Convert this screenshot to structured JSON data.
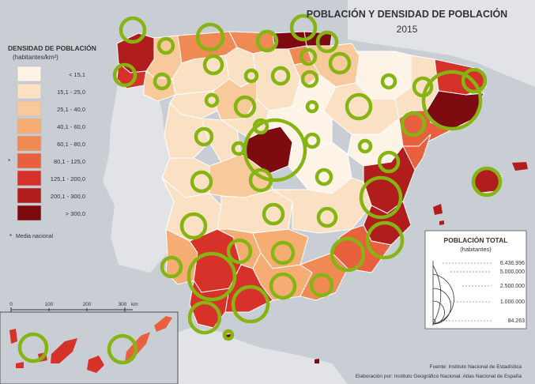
{
  "title": "POBLACIÓN Y DENSIDAD DE POBLACIÓN",
  "year": "2015",
  "density_legend": {
    "title": "DENSIDAD DE POBLACIÓN",
    "unit": "(habitantes/km²)",
    "classes": [
      {
        "label": "< 15,1",
        "color": "#fdf3e7"
      },
      {
        "label": "15,1 - 25,0",
        "color": "#fbe1c4"
      },
      {
        "label": "25,1 - 40,0",
        "color": "#f8c99a"
      },
      {
        "label": "40,1 - 60,0",
        "color": "#f5ad74"
      },
      {
        "label": "60,1 - 80,0",
        "color": "#f08a55"
      },
      {
        "label": "80,1 - 125,0",
        "color": "#e9603e",
        "marker": "*"
      },
      {
        "label": "125,1 - 200,0",
        "color": "#d6322a"
      },
      {
        "label": "200,1 - 300,0",
        "color": "#b11c1c"
      },
      {
        "label": "> 300,0",
        "color": "#7d0a0e"
      }
    ],
    "note_marker": "*",
    "note": "Media nacional"
  },
  "population_legend": {
    "title": "POBLACIÓN TOTAL",
    "unit": "(habitantes)",
    "values": [
      "6.436.996",
      "5.000.000",
      "2.500.000",
      "1.000.000",
      "84.263"
    ]
  },
  "scale_bar": {
    "ticks": [
      "0",
      "100",
      "200",
      "300"
    ],
    "unit": "km"
  },
  "source": "Fuente: Instituto Nacional de Estadística",
  "credits": "Elaboración por: Instituto Geográfico Nacional. Atlas Nacional de España",
  "colors": {
    "sea": "#c9ced4",
    "foreign_land": "#e1e3e6",
    "circle": "#86b413",
    "border": "#ffffff"
  }
}
